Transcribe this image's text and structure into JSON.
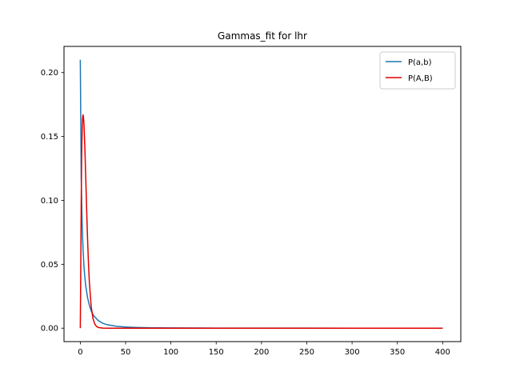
{
  "chart_data": {
    "type": "line",
    "title": "Gammas_fit for lhr",
    "xlabel": "",
    "ylabel": "",
    "xlim": [
      -18,
      420
    ],
    "ylim": [
      -0.0105,
      0.2205
    ],
    "xticks": [
      0,
      50,
      100,
      150,
      200,
      250,
      300,
      350,
      400
    ],
    "yticks": [
      0.0,
      0.05,
      0.1,
      0.15,
      0.2
    ],
    "ytick_labels": [
      "0.00",
      "0.05",
      "0.10",
      "0.15",
      "0.20"
    ],
    "grid": false,
    "legend_position": "top-right",
    "series": [
      {
        "name": "P(a,b)",
        "color": "#1f77b4",
        "x": [
          0,
          1,
          2,
          3,
          4,
          5,
          6,
          8,
          10,
          12,
          15,
          20,
          25,
          30,
          40,
          50,
          60,
          80,
          100,
          150,
          200,
          250,
          300,
          350,
          400
        ],
        "y": [
          0.21,
          0.118,
          0.082,
          0.062,
          0.049,
          0.04,
          0.033,
          0.024,
          0.018,
          0.0135,
          0.0095,
          0.0058,
          0.0038,
          0.0027,
          0.0015,
          0.0009,
          0.0006,
          0.0003,
          0.0002,
          0.0001,
          5e-05,
          3e-05,
          2e-05,
          1e-05,
          0.0
        ]
      },
      {
        "name": "P(A,B)",
        "color": "#e00000",
        "x": [
          0,
          0.5,
          1,
          1.5,
          2,
          2.5,
          3,
          3.5,
          4,
          5,
          6,
          7,
          8,
          9,
          10,
          12,
          14,
          16,
          18,
          20,
          25,
          30,
          40,
          60,
          100,
          200,
          300,
          400
        ],
        "y": [
          0.0,
          0.045,
          0.098,
          0.134,
          0.155,
          0.164,
          0.167,
          0.165,
          0.16,
          0.142,
          0.118,
          0.093,
          0.07,
          0.051,
          0.036,
          0.017,
          0.0075,
          0.0032,
          0.0013,
          0.0005,
          5e-05,
          0.0,
          0.0,
          0.0,
          0.0,
          0.0,
          0.0,
          0.0
        ]
      }
    ]
  }
}
